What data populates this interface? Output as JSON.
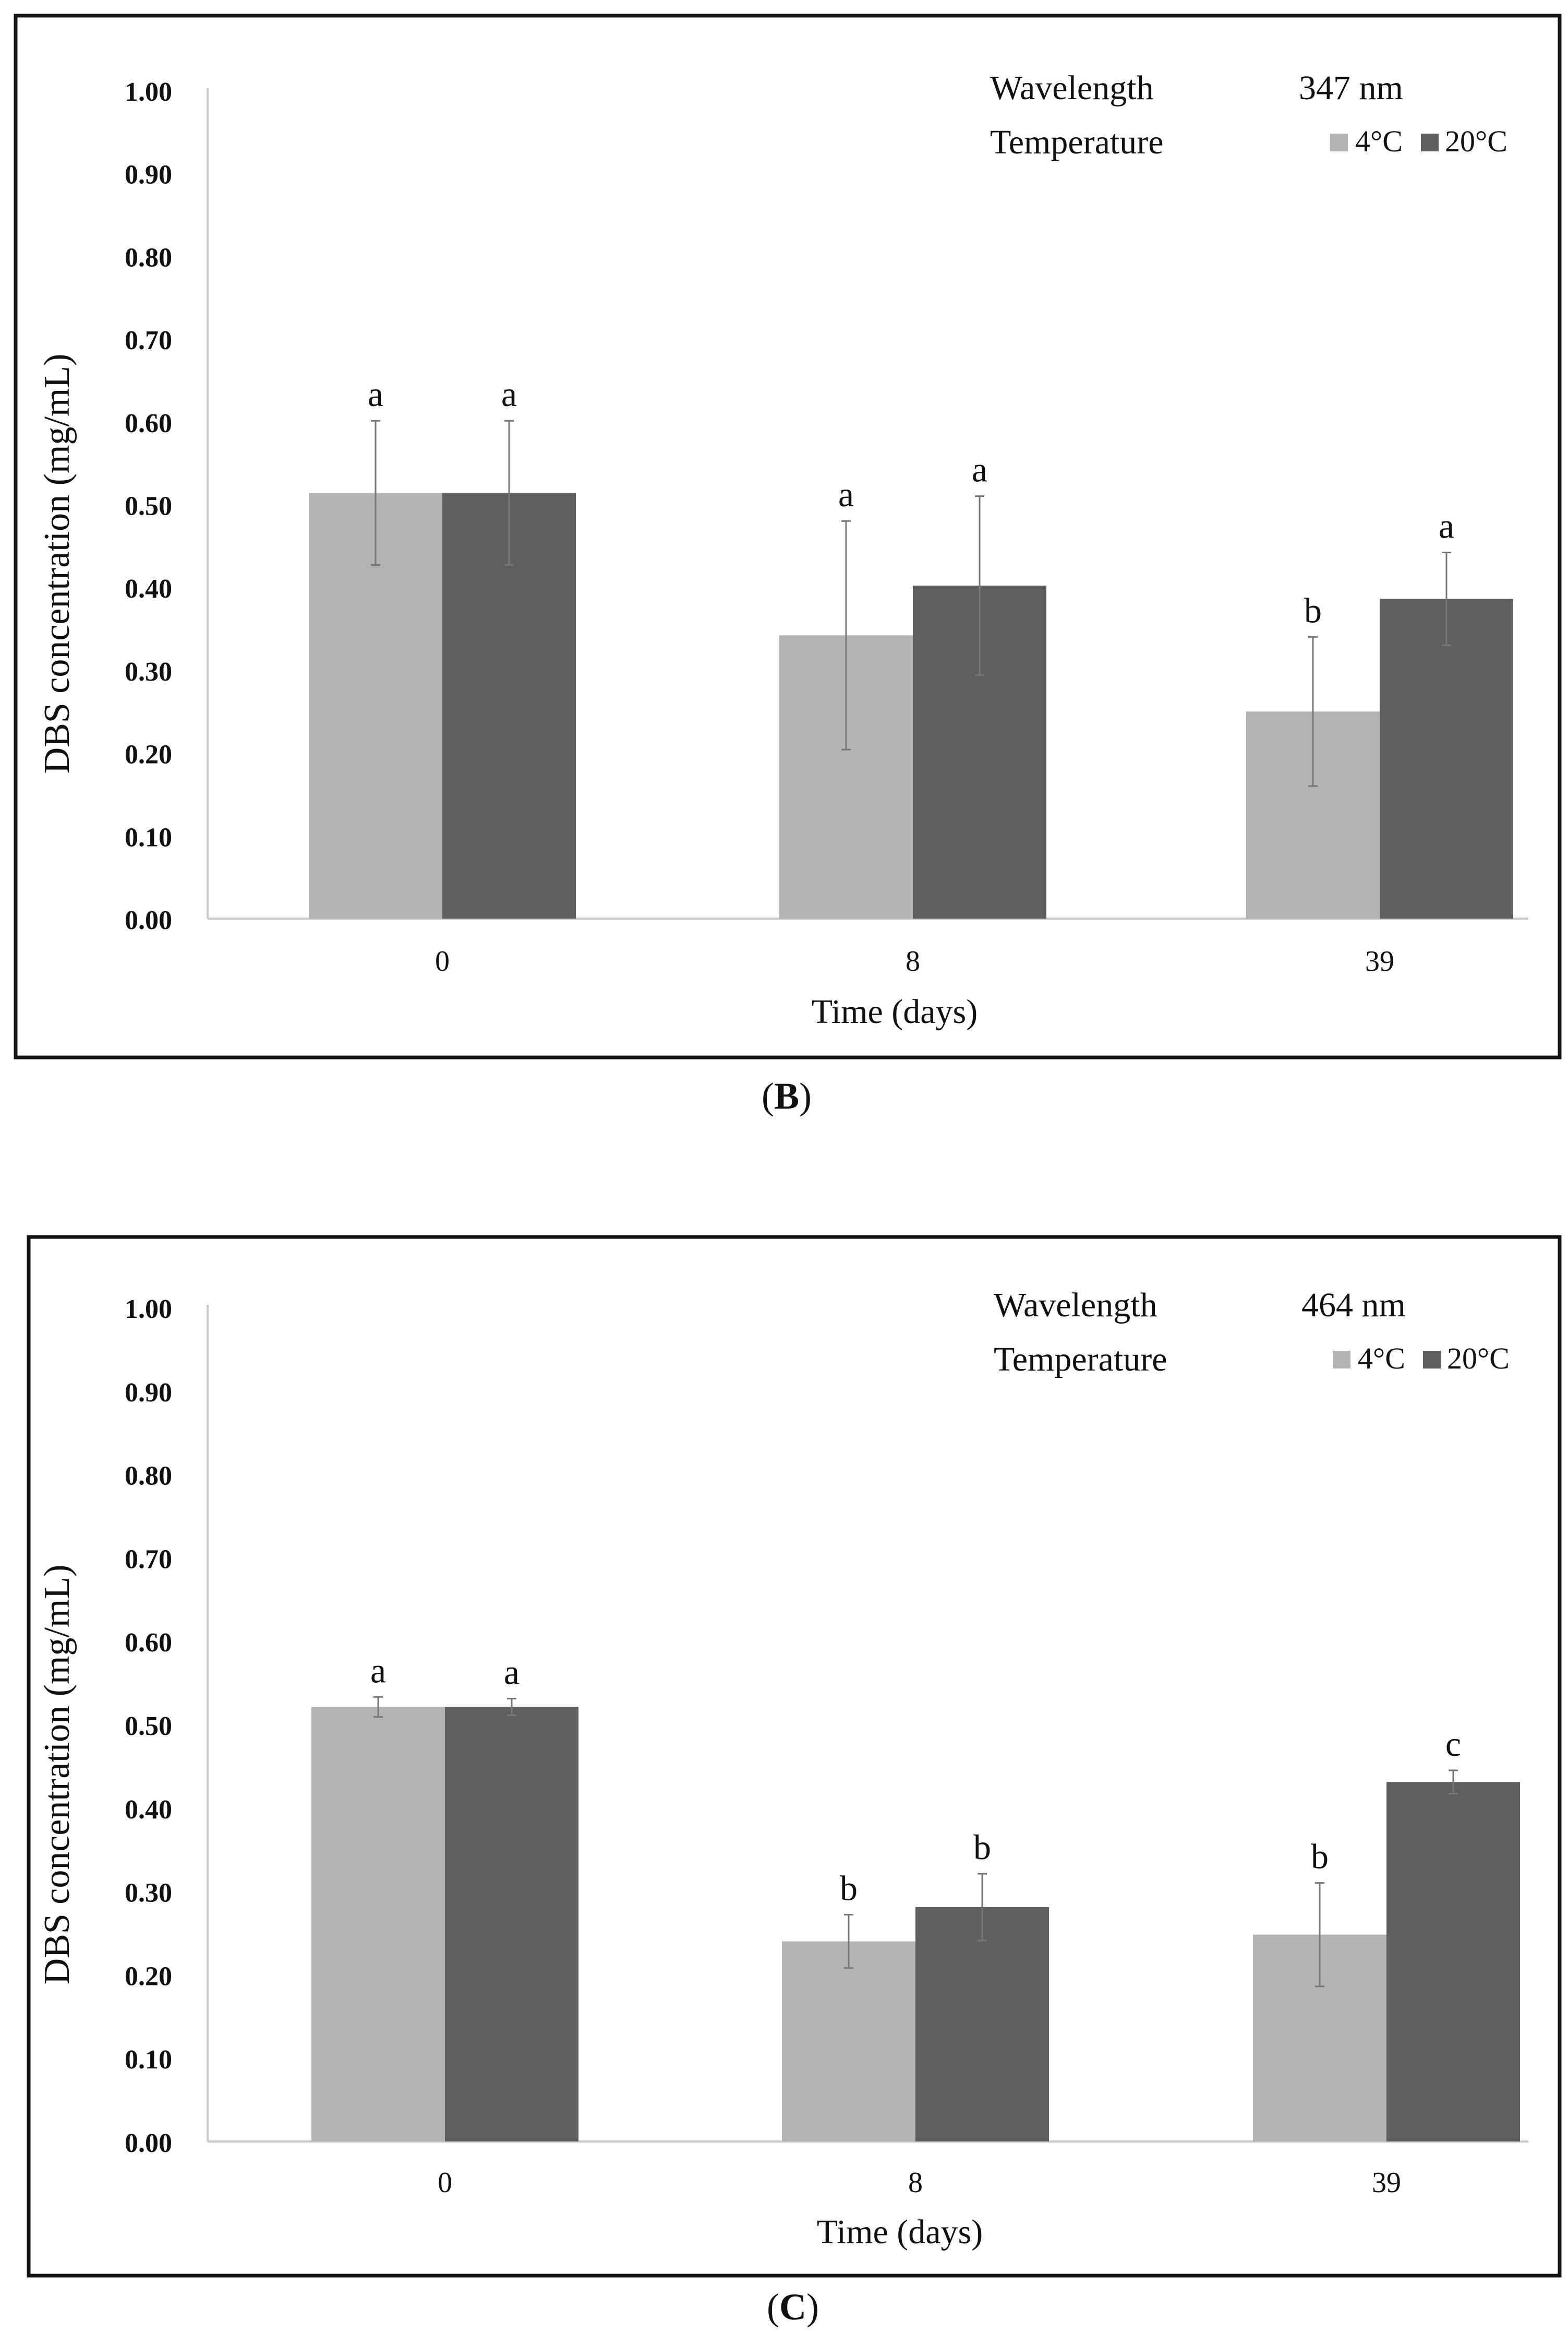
{
  "colors": {
    "c4": "#b3b3b3",
    "c20": "#5e5e5e",
    "axis": "#c8c8c8",
    "frame": "#111111",
    "error": "#777777"
  },
  "chart_data": [
    {
      "panel_label": "B",
      "type": "bar",
      "ylabel": "DBS concentration (mg/mL)",
      "xlabel": "Time (days)",
      "ylim": [
        0,
        1
      ],
      "y_ticks": [
        "0.00",
        "0.10",
        "0.20",
        "0.30",
        "0.40",
        "0.50",
        "0.60",
        "0.70",
        "0.80",
        "0.90",
        "1.00"
      ],
      "categories": [
        "0",
        "8",
        "39"
      ],
      "legend": {
        "wavelength_label": "Wavelength",
        "wavelength_value": "347 nm",
        "temperature_label": "Temperature",
        "placement": "top-right"
      },
      "series": [
        {
          "name": "4°C",
          "color": "#b3b3b3",
          "values": [
            0.514,
            0.342,
            0.25
          ],
          "errors": [
            0.087,
            0.138,
            0.09
          ],
          "letters": [
            "a",
            "a",
            "b"
          ]
        },
        {
          "name": "20°C",
          "color": "#5e5e5e",
          "values": [
            0.514,
            0.402,
            0.386
          ],
          "errors": [
            0.087,
            0.108,
            0.056
          ],
          "letters": [
            "a",
            "a",
            "a"
          ]
        }
      ]
    },
    {
      "panel_label": "C",
      "type": "bar",
      "ylabel": "DBS concentration (mg/mL)",
      "xlabel": "Time (days)",
      "ylim": [
        0,
        1
      ],
      "y_ticks": [
        "0.00",
        "0.10",
        "0.20",
        "0.30",
        "0.40",
        "0.50",
        "0.60",
        "0.70",
        "0.80",
        "0.90",
        "1.00"
      ],
      "categories": [
        "0",
        "8",
        "39"
      ],
      "legend": {
        "wavelength_label": "Wavelength",
        "wavelength_value": "464 nm",
        "temperature_label": "Temperature",
        "placement": "top-right"
      },
      "series": [
        {
          "name": "4°C",
          "color": "#b3b3b3",
          "values": [
            0.521,
            0.24,
            0.248
          ],
          "errors": [
            0.012,
            0.032,
            0.062
          ],
          "letters": [
            "a",
            "b",
            "b"
          ]
        },
        {
          "name": "20°C",
          "color": "#5e5e5e",
          "values": [
            0.521,
            0.281,
            0.431
          ],
          "errors": [
            0.01,
            0.04,
            0.014
          ],
          "letters": [
            "a",
            "b",
            "c"
          ]
        }
      ]
    }
  ]
}
